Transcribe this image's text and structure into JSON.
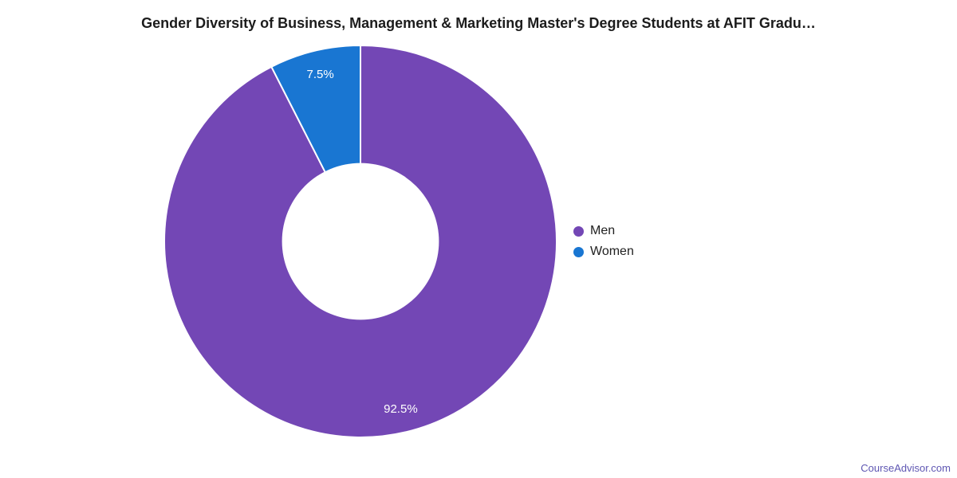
{
  "page": {
    "title": "Gender Diversity of Business, Management & Marketing Master's Degree Students at AFIT Gradu…",
    "watermark": "CourseAdvisor.com"
  },
  "colors": {
    "men_purple": "#7347b5",
    "women_blue": "#1976d2",
    "watermark": "#5f57b3",
    "title_text": "#1c1c1c",
    "legend_text": "#212121",
    "slice_label_text": "#ffffff",
    "background": "#ffffff"
  },
  "legend": {
    "position": "right",
    "items": [
      {
        "label": "Men",
        "color": "#7347b5"
      },
      {
        "label": "Women",
        "color": "#1976d2"
      }
    ]
  },
  "chart_data": {
    "type": "pie",
    "subtype": "donut",
    "title": "Gender Diversity of Business, Management & Marketing Master's Degree Students at AFIT Gradu…",
    "categories": [
      "Men",
      "Women"
    ],
    "values": [
      92.5,
      7.5
    ],
    "unit": "%",
    "slice_labels": [
      "92.5%",
      "7.5%"
    ],
    "colors": [
      "#7347b5",
      "#1976d2"
    ],
    "start_angle_deg": 0,
    "direction": "clockwise",
    "inner_radius_ratio": 0.4,
    "label_radius_ratio": 0.878,
    "legend_position": "right",
    "grid": false
  }
}
